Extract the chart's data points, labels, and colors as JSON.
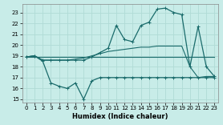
{
  "xlabel": "Humidex (Indice chaleur)",
  "xlim": [
    -0.5,
    23.5
  ],
  "ylim": [
    14.7,
    23.8
  ],
  "yticks": [
    15,
    16,
    17,
    18,
    19,
    20,
    21,
    22,
    23
  ],
  "xticks": [
    0,
    1,
    2,
    3,
    4,
    5,
    6,
    7,
    8,
    9,
    10,
    11,
    12,
    13,
    14,
    15,
    16,
    17,
    18,
    19,
    20,
    21,
    22,
    23
  ],
  "bg_color": "#c8ece8",
  "grid_color": "#b0dbd6",
  "line_color": "#1a6b6b",
  "series": {
    "line1_x": [
      0,
      1,
      2,
      3,
      4,
      5,
      6,
      7,
      8,
      9,
      10,
      11,
      12,
      13,
      14,
      15,
      16,
      17,
      18,
      19,
      20,
      21,
      22,
      23
    ],
    "line1_y": [
      18.9,
      18.9,
      18.9,
      18.9,
      18.9,
      18.9,
      18.9,
      18.9,
      18.9,
      18.9,
      18.9,
      18.9,
      18.9,
      18.9,
      18.9,
      18.9,
      18.9,
      18.9,
      18.9,
      18.9,
      18.9,
      18.9,
      18.9,
      18.9
    ],
    "line2_x": [
      0,
      1,
      2,
      3,
      4,
      5,
      6,
      7,
      8,
      9,
      10,
      11,
      12,
      13,
      14,
      15,
      16,
      17,
      18,
      19,
      20,
      21,
      22,
      23
    ],
    "line2_y": [
      18.9,
      19.0,
      18.6,
      18.6,
      18.6,
      18.6,
      18.7,
      18.8,
      19.0,
      19.2,
      19.4,
      19.5,
      19.6,
      19.7,
      19.8,
      19.8,
      19.9,
      19.9,
      19.9,
      19.9,
      18.0,
      17.0,
      17.1,
      17.1
    ],
    "line3_x": [
      0,
      1,
      2,
      3,
      4,
      5,
      6,
      7,
      8,
      9,
      10,
      11,
      12,
      13,
      14,
      15,
      16,
      17,
      18,
      19,
      20,
      21,
      22,
      23
    ],
    "line3_y": [
      18.9,
      19.0,
      18.6,
      18.6,
      18.6,
      18.6,
      18.6,
      18.6,
      18.9,
      19.3,
      19.7,
      21.8,
      20.5,
      20.3,
      21.8,
      22.1,
      23.3,
      23.4,
      23.0,
      22.8,
      18.0,
      21.7,
      18.0,
      17.1
    ],
    "line4_x": [
      0,
      1,
      2,
      3,
      4,
      5,
      6,
      7,
      8,
      9,
      10,
      11,
      12,
      13,
      14,
      15,
      16,
      17,
      18,
      19,
      20,
      21,
      22,
      23
    ],
    "line4_y": [
      18.9,
      19.0,
      18.5,
      16.5,
      16.2,
      16.0,
      16.5,
      15.0,
      16.7,
      17.0,
      17.0,
      17.0,
      17.0,
      17.0,
      17.0,
      17.0,
      17.0,
      17.0,
      17.0,
      17.0,
      17.0,
      17.0,
      17.0,
      17.0
    ]
  }
}
